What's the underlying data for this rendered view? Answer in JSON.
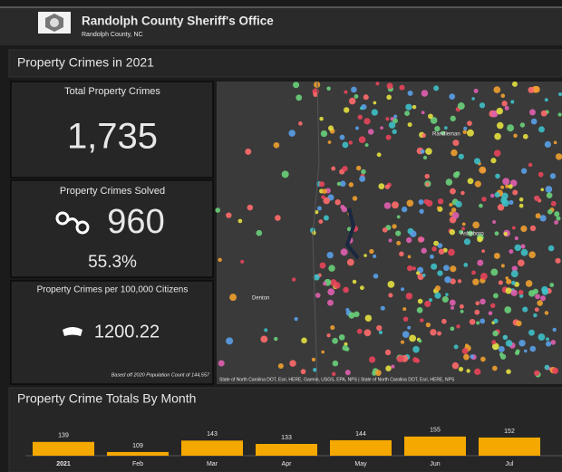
{
  "header": {
    "title": "Randolph County Sheriff's Office",
    "subtitle": "Randolph County, NC"
  },
  "section_title": "Property Crimes in 2021",
  "tiles": [
    {
      "title": "Total Property Crimes",
      "value": "1,735"
    },
    {
      "title": "Property Crimes Solved",
      "value": "960",
      "subvalue": "55.3%"
    },
    {
      "title": "Property Crimes per 100,000 Citizens",
      "value": "1200.22",
      "note": "Based off 2020 Population Count of 144,557"
    }
  ],
  "map": {
    "places": [
      "Randleman",
      "Asheboro",
      "Denton"
    ],
    "attribution": "State of North Carolina DOT, Esri, HERE, Garmin, USGS, EPA, NPS | State of North Carolina DOT, Esri, HERE, NPS"
  },
  "chart_data": {
    "type": "bar",
    "title": "Property Crime Totals By Month",
    "categories": [
      "2021",
      "Feb",
      "Mar",
      "Apr",
      "May",
      "Jun",
      "Jul"
    ],
    "values": [
      139,
      109,
      143,
      133,
      144,
      155,
      152
    ],
    "color": "#f5a800",
    "ylim": [
      98,
      160
    ]
  }
}
